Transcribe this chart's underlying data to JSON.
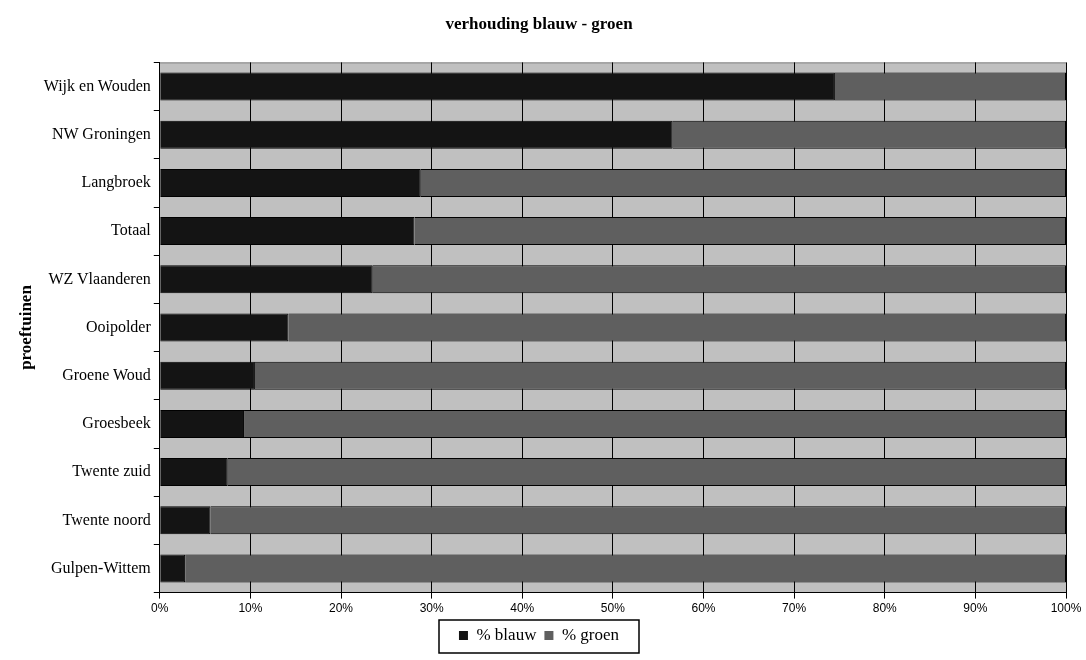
{
  "chart_data": {
    "type": "bar",
    "title": "verhouding blauw - groen",
    "ylabel": "proeftuinen",
    "orientation": "horizontal",
    "stacked": true,
    "categories": [
      "Wijk en Wouden",
      "NW Groningen",
      "Langbroek",
      "Totaal",
      "WZ Vlaanderen",
      "Ooipolder",
      "Groene Woud",
      "Groesbeek",
      "Twente zuid",
      "Twente noord",
      "Gulpen-Wittem"
    ],
    "series": [
      {
        "name": "% blauw",
        "color": "#141414",
        "values": [
          74.5,
          56.6,
          28.8,
          28.1,
          23.5,
          14.2,
          10.5,
          9.3,
          7.5,
          5.6,
          2.8
        ]
      },
      {
        "name": "% groen",
        "color": "#5f5f5f",
        "values": [
          25.5,
          43.4,
          71.2,
          71.9,
          76.5,
          85.8,
          89.5,
          90.7,
          92.5,
          94.4,
          97.2
        ]
      }
    ],
    "xlim": [
      0,
      100
    ],
    "xticks": [
      {
        "value": 0,
        "label": "0%"
      },
      {
        "value": 10,
        "label": "10%"
      },
      {
        "value": 20,
        "label": "20%"
      },
      {
        "value": 30,
        "label": "30%"
      },
      {
        "value": 40,
        "label": "40%"
      },
      {
        "value": 50,
        "label": "50%"
      },
      {
        "value": 60,
        "label": "60%"
      },
      {
        "value": 70,
        "label": "70%"
      },
      {
        "value": 80,
        "label": "80%"
      },
      {
        "value": 90,
        "label": "90%"
      },
      {
        "value": 100,
        "label": "100%"
      }
    ],
    "grid": "x",
    "legend": "bottom"
  }
}
